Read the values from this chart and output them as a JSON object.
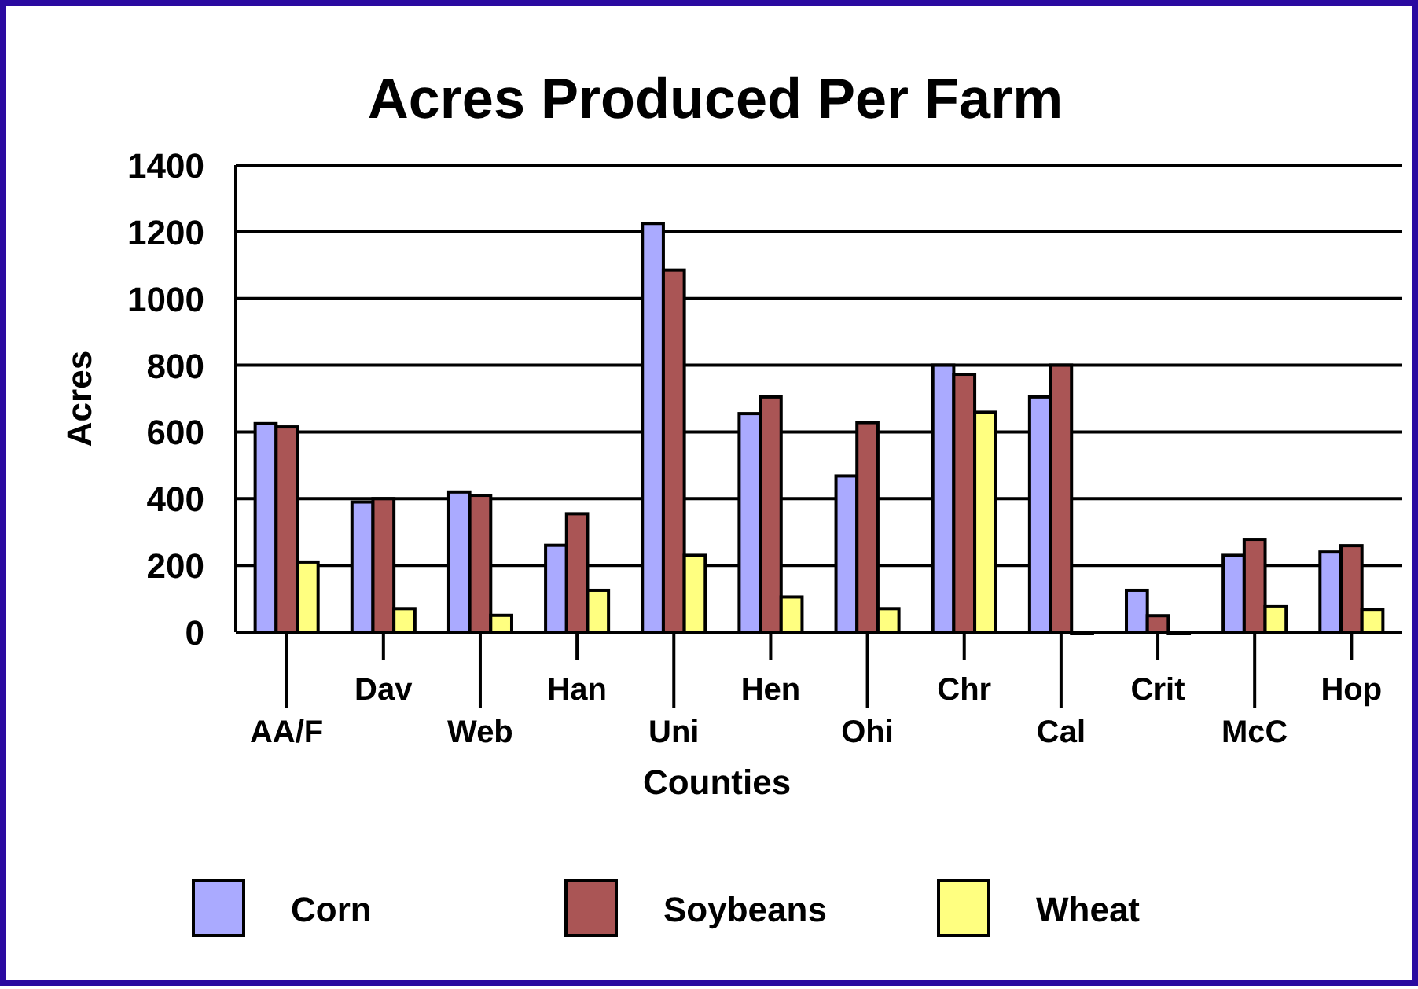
{
  "chart_data": {
    "type": "bar",
    "title": "Acres Produced Per Farm",
    "xlabel": "Counties",
    "ylabel": "Acres",
    "categories": [
      "AA/F",
      "Dav",
      "Web",
      "Han",
      "Uni",
      "Hen",
      "Ohi",
      "Chr",
      "Cal",
      "Crit",
      "McC",
      "Hop"
    ],
    "series": [
      {
        "name": "Corn",
        "color": "#aaaaff",
        "values": [
          625,
          390,
          420,
          260,
          1225,
          655,
          468,
          800,
          705,
          125,
          230,
          240
        ]
      },
      {
        "name": "Soybeans",
        "color": "#aa5555",
        "values": [
          615,
          400,
          410,
          355,
          1085,
          705,
          628,
          773,
          800,
          49,
          278,
          259
        ]
      },
      {
        "name": "Wheat",
        "color": "#ffff80",
        "values": [
          210,
          70,
          50,
          125,
          230,
          105,
          70,
          659,
          0,
          0,
          78,
          68
        ]
      }
    ],
    "ylim": [
      0,
      1400
    ],
    "yticks": [
      0,
      200,
      400,
      600,
      800,
      1000,
      1200,
      1400
    ],
    "grid": "y",
    "legend": "bottom"
  }
}
